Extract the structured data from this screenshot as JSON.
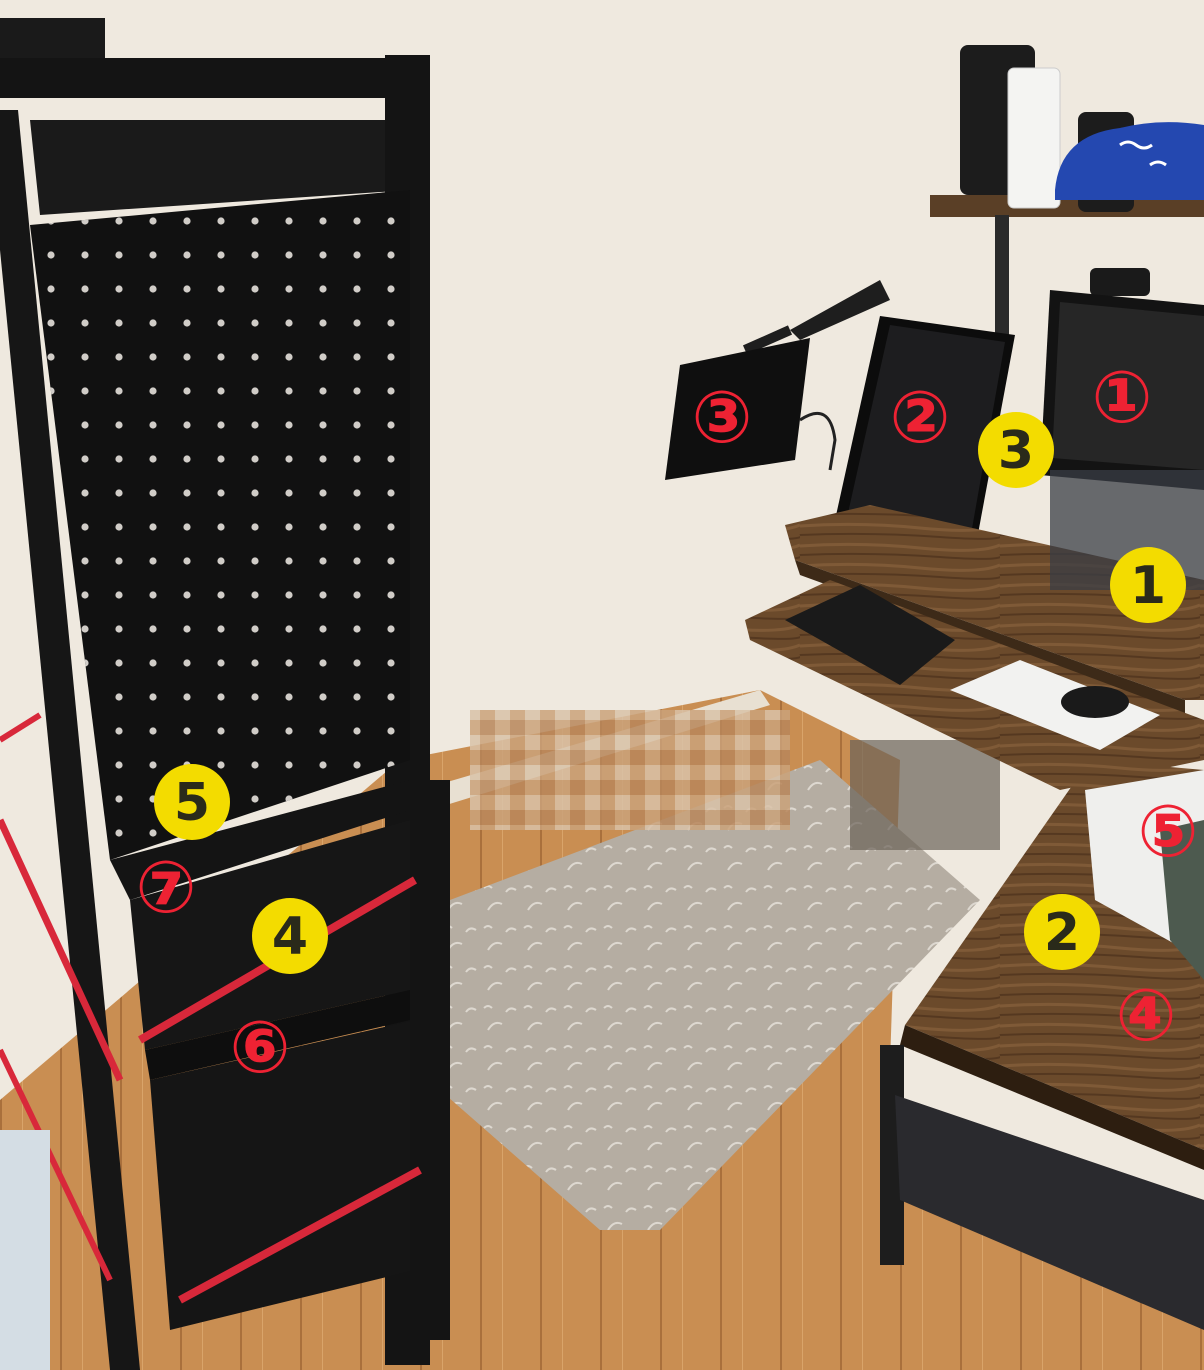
{
  "colors": {
    "wall": "#efe9df",
    "floor": "#c98e52",
    "rack": "#1a1a1a",
    "wood": "#6a4a2c",
    "mat": "#b9b1a6",
    "strap": "#d8283a",
    "badge_red": "#ee2233",
    "badge_yellow": "#f3dc00"
  },
  "labels_red": [
    {
      "id": "monitor",
      "text": "①"
    },
    {
      "id": "tablet-stand",
      "text": "②"
    },
    {
      "id": "arm-tablet",
      "text": "③"
    },
    {
      "id": "side-desk-cable",
      "text": "④"
    },
    {
      "id": "side-desk-mousepad",
      "text": "⑤"
    },
    {
      "id": "rack-strap",
      "text": "⑥"
    },
    {
      "id": "rack-shelf",
      "text": "⑦"
    }
  ],
  "labels_yellow": [
    {
      "id": "desk-tray",
      "text": "1"
    },
    {
      "id": "side-desk",
      "text": "2"
    },
    {
      "id": "monitor-base",
      "text": "3"
    },
    {
      "id": "rack-strap",
      "text": "4"
    },
    {
      "id": "rack-panel",
      "text": "5"
    }
  ]
}
